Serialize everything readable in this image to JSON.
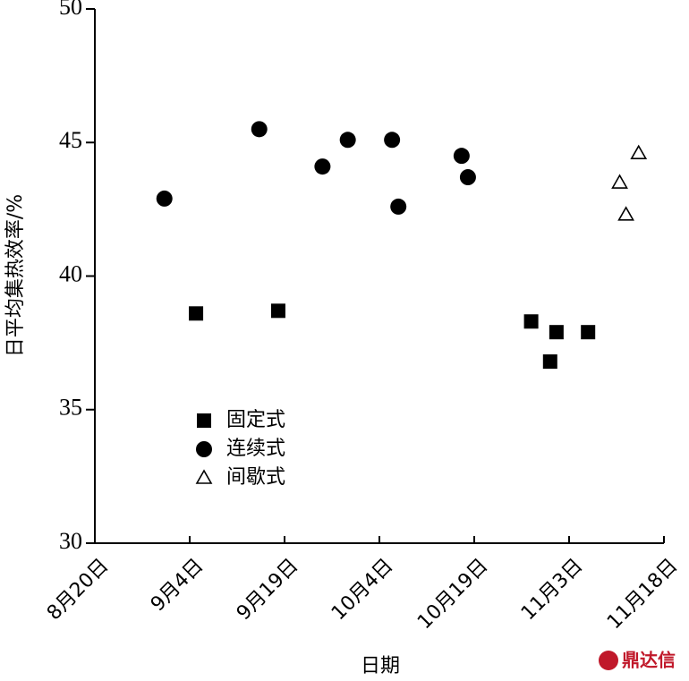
{
  "chart_data": {
    "type": "scatter",
    "xlabel": "日期",
    "ylabel": "日平均集热效率/%",
    "xlim": [
      "08-20",
      "11-18"
    ],
    "xticks": [
      {
        "value": "08-20",
        "label": "8月20日"
      },
      {
        "value": "09-04",
        "label": "9月4日"
      },
      {
        "value": "09-19",
        "label": "9月19日"
      },
      {
        "value": "10-04",
        "label": "10月4日"
      },
      {
        "value": "10-19",
        "label": "10月19日"
      },
      {
        "value": "11-03",
        "label": "11月3日"
      },
      {
        "value": "11-18",
        "label": "11月18日"
      }
    ],
    "ylim": [
      30,
      50
    ],
    "yticks": [
      30,
      35,
      40,
      45,
      50
    ],
    "series": [
      {
        "name": "固定式",
        "marker": "square",
        "color": "#000000",
        "x": [
          "09-05",
          "09-18",
          "10-28",
          "11-01",
          "10-31",
          "11-06"
        ],
        "values": [
          38.6,
          38.7,
          38.3,
          37.9,
          36.8,
          37.9
        ]
      },
      {
        "name": "连续式",
        "marker": "circle",
        "color": "#000000",
        "x": [
          "08-31",
          "09-15",
          "09-25",
          "09-29",
          "10-06",
          "10-07",
          "10-17",
          "10-18"
        ],
        "values": [
          42.9,
          45.5,
          44.1,
          45.1,
          45.1,
          42.6,
          44.5,
          43.7
        ]
      },
      {
        "name": "间歇式",
        "marker": "triangle-open",
        "color": "#000000",
        "x": [
          "11-11",
          "11-12",
          "11-14"
        ],
        "values": [
          43.5,
          42.3,
          44.6
        ]
      }
    ],
    "watermark": "鼎达信"
  }
}
